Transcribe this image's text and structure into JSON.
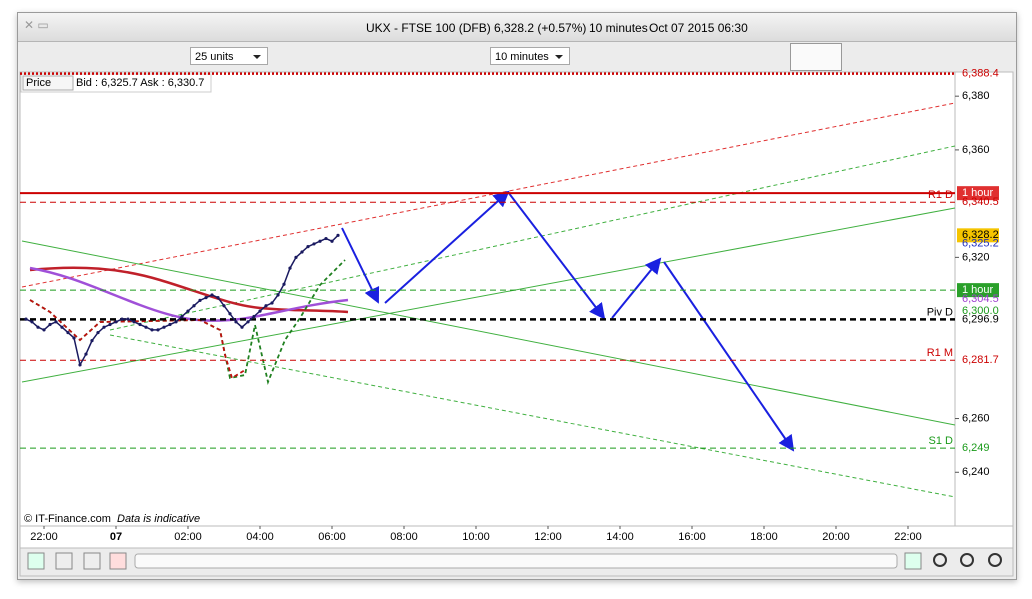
{
  "window": {
    "title": "UKX - FTSE 100 (DFB)",
    "quote": "6,328.2 (+0.57%)",
    "interval": "10 minutes",
    "datetime": "Oct 07 2015 06:30"
  },
  "toolbar": {
    "units": "25 units",
    "interval": "10 minutes"
  },
  "info": {
    "price_button": "Price",
    "quote": "Bid : 6,325.7 Ask : 6,330.7"
  },
  "footer": {
    "credit": "© IT-Finance.com",
    "note": "Data is indicative"
  },
  "chart_data": {
    "type": "line",
    "color": "#1a1a60",
    "time_labels": [
      "22:00",
      "07",
      "02:00",
      "04:00",
      "06:00",
      "08:00",
      "10:00",
      "12:00",
      "14:00",
      "16:00",
      "18:00",
      "20:00",
      "22:00"
    ],
    "values": [
      6297,
      6296,
      6294,
      6293,
      6295,
      6296,
      6294,
      6292,
      6290,
      6280,
      6284,
      6289,
      6292,
      6294,
      6295,
      6296,
      6297,
      6297,
      6296,
      6295,
      6294,
      6293,
      6293,
      6294,
      6295,
      6296,
      6298,
      6300,
      6302,
      6304,
      6305,
      6306,
      6305,
      6302,
      6299,
      6296,
      6294,
      6296,
      6298,
      6300,
      6302,
      6303,
      6306,
      6310,
      6316,
      6320,
      6322,
      6324,
      6325,
      6326,
      6327,
      6326,
      6328.2
    ],
    "ylim": [
      6220,
      6389
    ],
    "yticks": [
      {
        "value": 6240,
        "label": "6,240"
      },
      {
        "value": 6260,
        "label": "6,260"
      },
      {
        "value": 6320,
        "label": "6,320"
      },
      {
        "value": 6360,
        "label": "6,360"
      },
      {
        "value": 6380,
        "label": "6,380"
      }
    ],
    "grid": false,
    "levels": [
      {
        "value": 6388.4,
        "value_label": "6,388.4",
        "color": "#cc0000",
        "line": "dotted"
      },
      {
        "value": 6343.9,
        "value_label": "1 hour",
        "color": "#cc0000",
        "line": "solid",
        "box": "#e03030"
      },
      {
        "value": 6340.5,
        "value_label": "6,340.5",
        "tag": "R1 D",
        "color": "#cc0000",
        "line": "dashed"
      },
      {
        "value": 6328.2,
        "value_label": "6,328.2",
        "color": "#000000",
        "line": "none",
        "box": "#f5c400"
      },
      {
        "value": 6325.2,
        "value_label": "6,325.2",
        "color": "#2030c0",
        "line": "none"
      },
      {
        "value": 6307.8,
        "value_label": "1 hour",
        "color": "#1a9a1a",
        "line": "dashed",
        "box": "#2aa02a"
      },
      {
        "value": 6304.5,
        "value_label": "6,304.5",
        "color": "#a040d0",
        "line": "none"
      },
      {
        "value": 6300.0,
        "value_label": "6,300.0",
        "color": "#1a9a1a",
        "line": "none"
      },
      {
        "value": 6296.9,
        "value_label": "6,296.9",
        "tag": "Piv D",
        "color": "#000000",
        "line": "dashed"
      },
      {
        "value": 6281.7,
        "value_label": "6,281.7",
        "tag": "R1 M",
        "color": "#cc0000",
        "line": "dashed"
      },
      {
        "value": 6249,
        "value_label": "6,249",
        "tag": "S1 D",
        "color": "#1a9a1a",
        "line": "dashed"
      }
    ]
  }
}
